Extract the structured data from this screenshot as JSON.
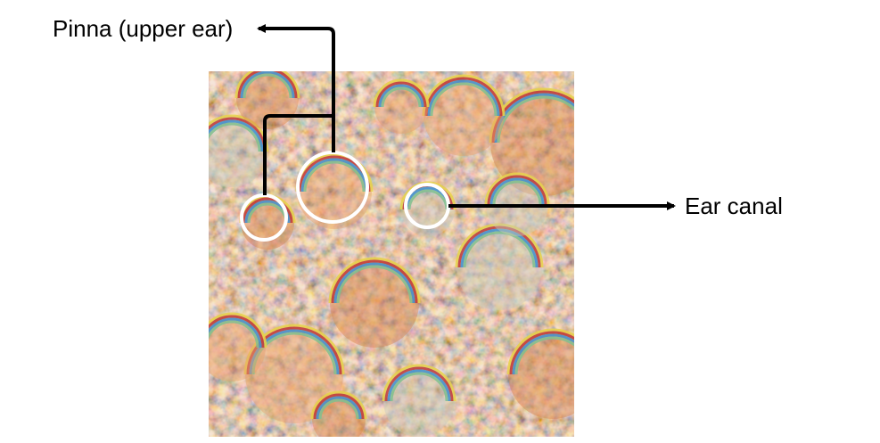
{
  "labels": {
    "pinna": "Pinna (upper ear)",
    "ear_canal": "Ear canal"
  },
  "image": {
    "description_icon": "feature-visualization-image",
    "palette": [
      "#d9824a",
      "#e8a06a",
      "#c8c8b8",
      "#7fbf8f",
      "#3f8fd0",
      "#c03a3a",
      "#e6d24a",
      "#8a6a50"
    ]
  },
  "colors": {
    "annotation_line": "#000000",
    "highlight_circle": "#ffffff",
    "background": "#ffffff"
  }
}
